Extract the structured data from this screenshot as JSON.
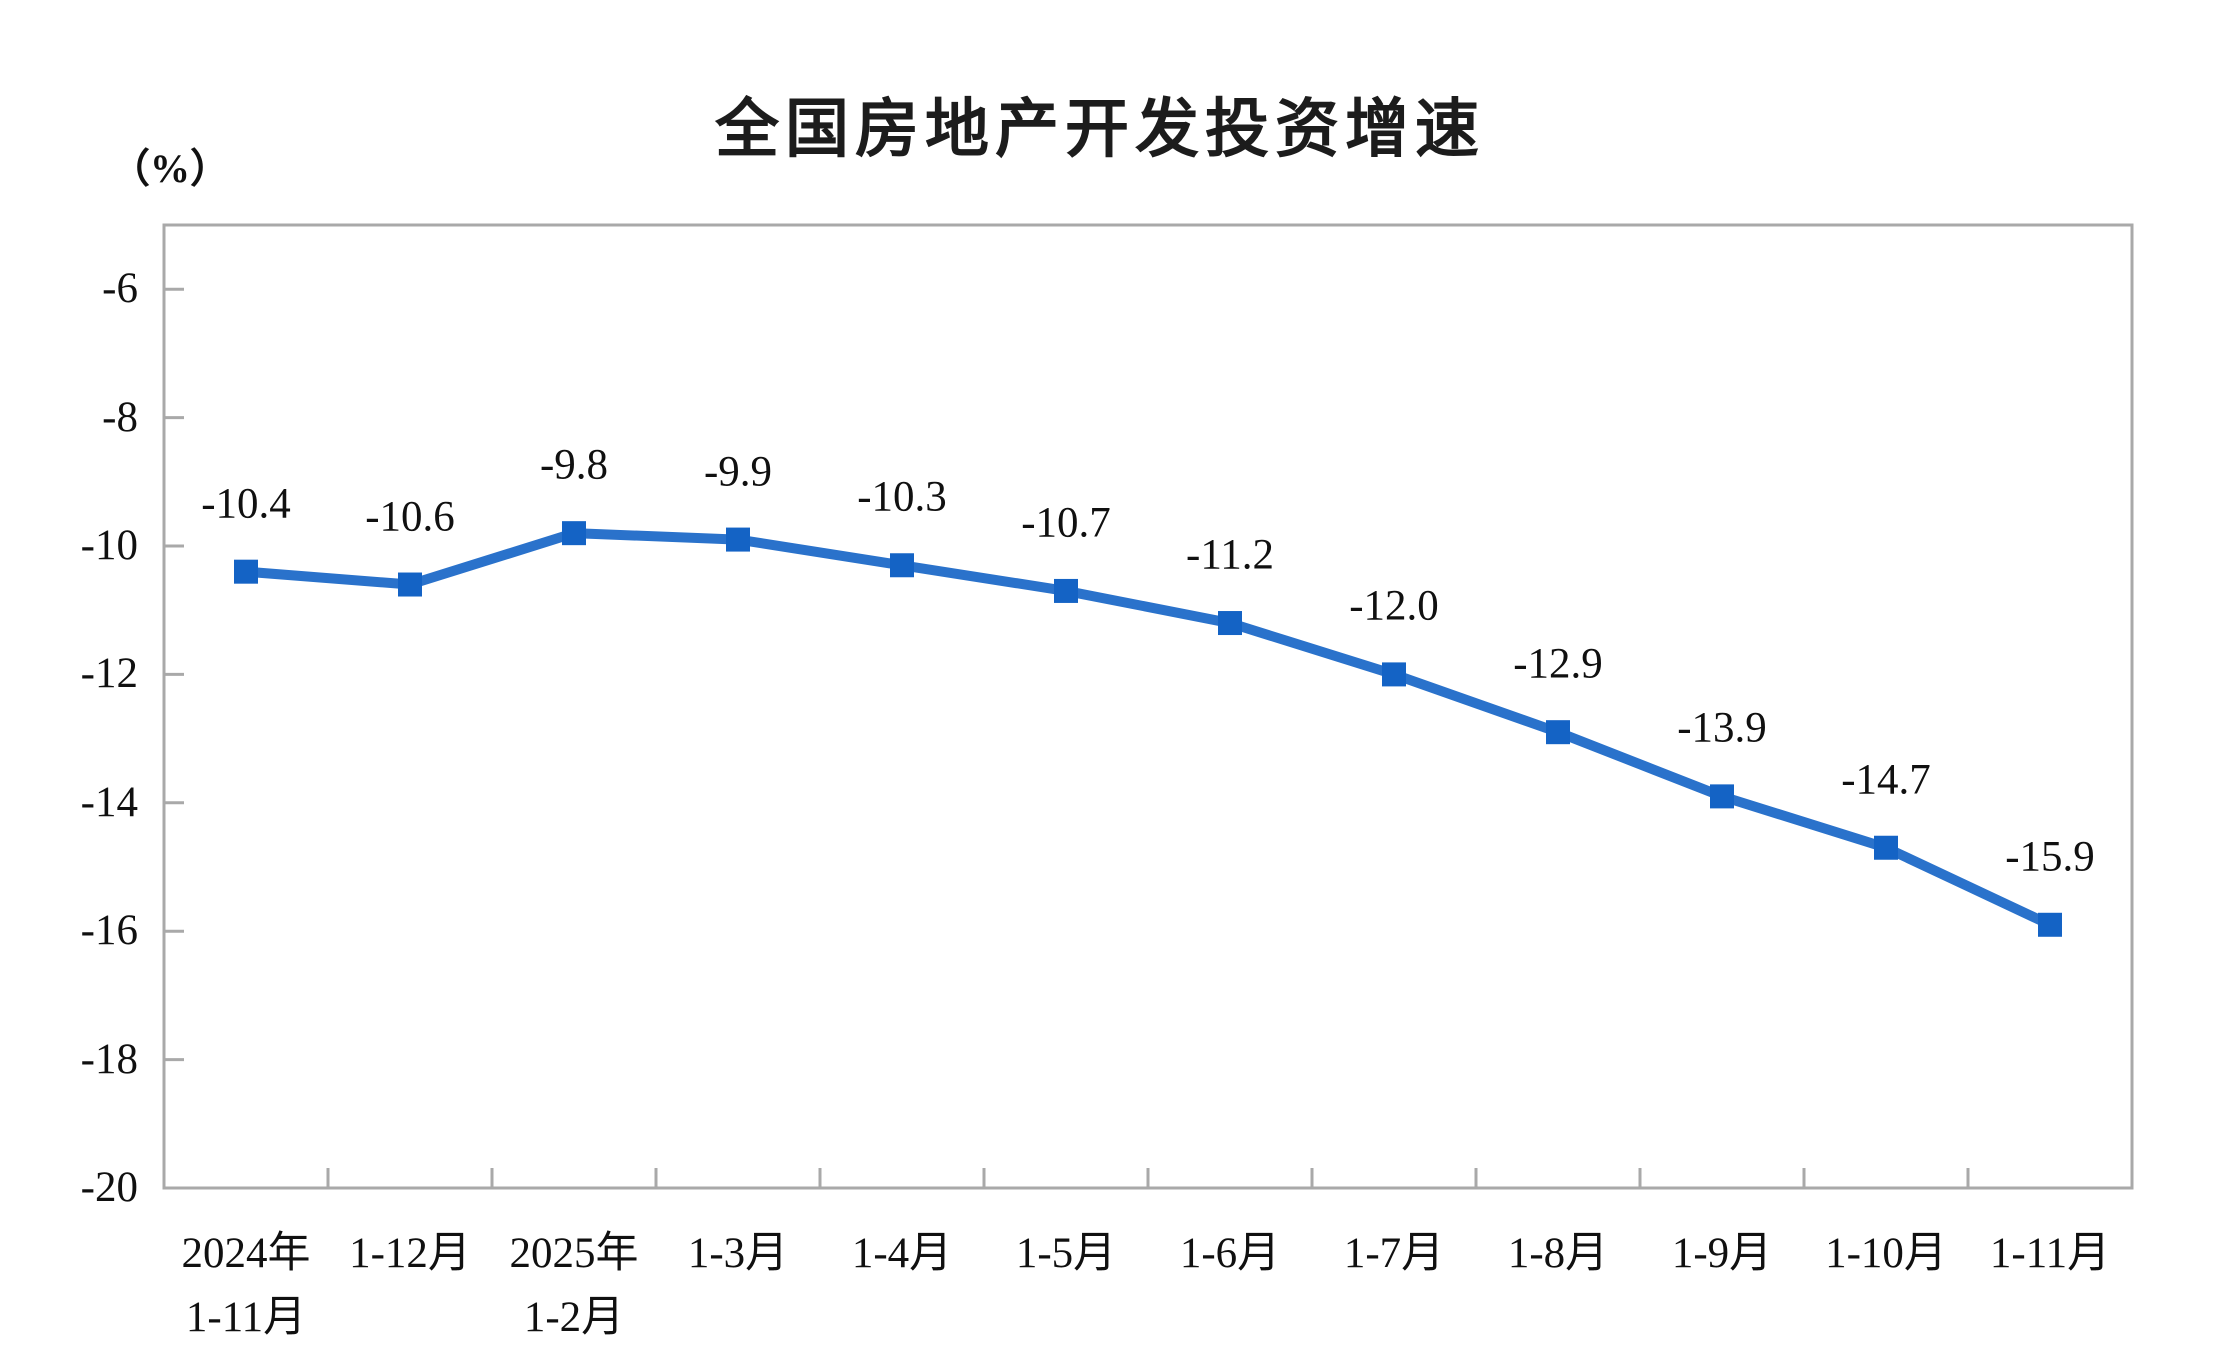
{
  "title": "全国房地产开发投资增速",
  "y_unit_label": "（%）",
  "chart_data": {
    "type": "line",
    "title": "全国房地产开发投资增速",
    "ylabel": "（%）",
    "xlabel": "",
    "categories": [
      "2024年\n1-11月",
      "1-12月",
      "2025年\n1-2月",
      "1-3月",
      "1-4月",
      "1-5月",
      "1-6月",
      "1-7月",
      "1-8月",
      "1-9月",
      "1-10月",
      "1-11月"
    ],
    "values": [
      -10.4,
      -10.6,
      -9.8,
      -9.9,
      -10.3,
      -10.7,
      -11.2,
      -12.0,
      -12.9,
      -13.9,
      -14.7,
      -15.9
    ],
    "data_labels": [
      "-10.4",
      "-10.6",
      "-9.8",
      "-9.9",
      "-10.3",
      "-10.7",
      "-11.2",
      "-12.0",
      "-12.9",
      "-13.9",
      "-14.7",
      "-15.9"
    ],
    "ylim": [
      -20,
      -5
    ],
    "yticks": [
      -20,
      -18,
      -16,
      -14,
      -12,
      -10,
      -8,
      -6
    ],
    "ytick_labels": [
      "-20",
      "-18",
      "-16",
      "-14",
      "-12",
      "-10",
      "-8",
      "-6"
    ],
    "grid": false,
    "legend": null,
    "line_color": "#2A72CB",
    "marker_color": "#1463C5",
    "axis_color": "#A9A9A9",
    "text_color": "#101010"
  }
}
